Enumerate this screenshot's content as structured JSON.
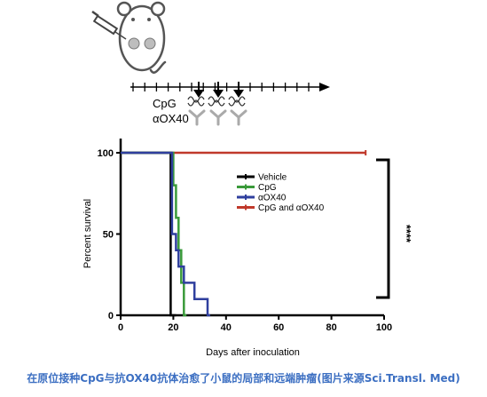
{
  "schematic": {
    "timeline_labels": [
      "CpG",
      "αOX40"
    ]
  },
  "legend": {
    "entries": [
      "Vehicle",
      "CpG",
      "αOX40",
      "CpG and αOX40"
    ]
  },
  "significance": "****",
  "caption": "在原位接种CpG与抗OX40抗体治愈了小鼠的局部和远端肿瘤(图片来源Sci.Transl. Med)",
  "colors": {
    "vehicle": "#000000",
    "cpg": "#3a9a3a",
    "aox40": "#2f3f9e",
    "combo": "#c0392b",
    "caption": "#3c6fc2"
  },
  "chart_data": {
    "type": "line",
    "step": true,
    "xlabel": "Days after inoculation",
    "ylabel": "Percent survival",
    "xlim": [
      0,
      100
    ],
    "ylim": [
      0,
      100
    ],
    "xticks": [
      0,
      20,
      40,
      60,
      80,
      100
    ],
    "yticks": [
      0,
      50,
      100
    ],
    "legend_position": "top-center",
    "series": [
      {
        "name": "Vehicle",
        "color": "#000000",
        "points": [
          [
            0,
            100
          ],
          [
            19,
            100
          ],
          [
            19,
            0
          ],
          [
            21,
            0
          ]
        ]
      },
      {
        "name": "CpG",
        "color": "#3a9a3a",
        "points": [
          [
            0,
            100
          ],
          [
            20,
            100
          ],
          [
            20,
            80
          ],
          [
            21,
            80
          ],
          [
            21,
            60
          ],
          [
            22,
            60
          ],
          [
            22,
            40
          ],
          [
            23,
            40
          ],
          [
            23,
            20
          ],
          [
            24,
            20
          ],
          [
            24,
            0
          ],
          [
            25,
            0
          ]
        ]
      },
      {
        "name": "αOX40",
        "color": "#2f3f9e",
        "points": [
          [
            0,
            100
          ],
          [
            19.5,
            100
          ],
          [
            19.5,
            50
          ],
          [
            21,
            50
          ],
          [
            21,
            40
          ],
          [
            22,
            40
          ],
          [
            22,
            30
          ],
          [
            24,
            30
          ],
          [
            24,
            20
          ],
          [
            28,
            20
          ],
          [
            28,
            10
          ],
          [
            33,
            10
          ],
          [
            33,
            0
          ],
          [
            34,
            0
          ]
        ]
      },
      {
        "name": "CpG and αOX40",
        "color": "#c0392b",
        "points": [
          [
            0,
            100
          ],
          [
            93,
            100
          ]
        ]
      }
    ]
  }
}
